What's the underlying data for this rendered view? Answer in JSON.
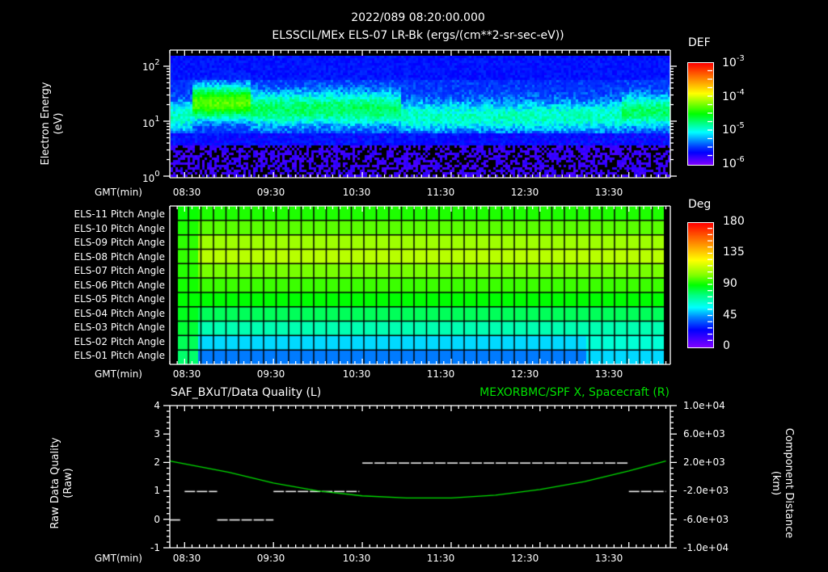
{
  "header": {
    "timestamp": "2022/089 08:20:00.000",
    "title": "ELSSCIL/MEx ELS-07 LR-Bk  (ergs/(cm**2-sr-sec-eV))"
  },
  "time_axis": {
    "label": "GMT(min)",
    "ticks": [
      "08:30",
      "09:30",
      "10:30",
      "11:30",
      "12:30",
      "13:30"
    ]
  },
  "panel1": {
    "ylabel": "Electron Energy",
    "yunit": "(eV)",
    "yticks": [
      {
        "base": "10",
        "exp": "2"
      },
      {
        "base": "10",
        "exp": "1"
      },
      {
        "base": "10",
        "exp": "0"
      }
    ],
    "colorbar": {
      "title": "DEF",
      "ticks": [
        {
          "base": "10",
          "exp": "-3"
        },
        {
          "base": "10",
          "exp": "-4"
        },
        {
          "base": "10",
          "exp": "-5"
        },
        {
          "base": "10",
          "exp": "-6"
        }
      ]
    }
  },
  "panel2": {
    "row_labels": [
      "ELS-11 Pitch Angle",
      "ELS-10 Pitch Angle",
      "ELS-09 Pitch Angle",
      "ELS-08 Pitch Angle",
      "ELS-07 Pitch Angle",
      "ELS-06 Pitch Angle",
      "ELS-05 Pitch Angle",
      "ELS-04 Pitch Angle",
      "ELS-03 Pitch Angle",
      "ELS-02 Pitch Angle",
      "ELS-01 Pitch Angle"
    ],
    "colorbar": {
      "title": "Deg",
      "ticks": [
        "180",
        "135",
        "90",
        "45",
        "0"
      ]
    }
  },
  "panel3": {
    "left_title": "SAF_BXuT/Data Quality (L)",
    "right_title": "MEXORBMC/SPF X, Spacecraft (R)",
    "ylabel_left": "Raw Data Quality",
    "ylabel_left_unit": "(Raw)",
    "ylabel_right": "Component Distance",
    "ylabel_right_unit": "(km)",
    "yticks_left": [
      "4",
      "3",
      "2",
      "1",
      "0",
      "-1"
    ],
    "yticks_right": [
      "1.0e+04",
      "6.0e+03",
      "2.0e+03",
      "-2.0e+03",
      "-6.0e+03",
      "-1.0e+04"
    ],
    "colors": {
      "quality": "#ffffff",
      "spf_x": "#00e000"
    }
  },
  "chart_data": [
    {
      "type": "heatmap",
      "title": "ELSSCIL/MEx ELS-07 LR-Bk (ergs/(cm**2-sr-sec-eV))",
      "xlabel": "GMT(min)",
      "ylabel": "Electron Energy (eV)",
      "x_ticks": [
        "08:30",
        "09:30",
        "10:30",
        "11:30",
        "12:30",
        "13:30"
      ],
      "y_scale": "log",
      "ylim": [
        1,
        150
      ],
      "colorbar": {
        "label": "DEF",
        "scale": "log",
        "range": [
          1e-06,
          0.001
        ]
      },
      "features": [
        {
          "time": "08:34-09:10",
          "energy_eV": "15-60",
          "level": 0.0002,
          "desc": "enhanced green/yellow band"
        },
        {
          "time": "09:10-10:35",
          "energy_eV": "10-40",
          "level": 6e-05
        },
        {
          "time": "10:35-13:50",
          "energy_eV": "8-30",
          "level": 3e-05
        },
        {
          "time": "08:20-13:55",
          "energy_eV": "1-4",
          "level": 1e-06,
          "desc": "noise floor / sparse"
        }
      ]
    },
    {
      "type": "heatmap",
      "title": "ELS Pitch Angle",
      "xlabel": "GMT(min)",
      "x_ticks": [
        "08:30",
        "09:30",
        "10:30",
        "11:30",
        "12:30",
        "13:30"
      ],
      "categories": [
        "ELS-11",
        "ELS-10",
        "ELS-09",
        "ELS-08",
        "ELS-07",
        "ELS-06",
        "ELS-05",
        "ELS-04",
        "ELS-03",
        "ELS-02",
        "ELS-01"
      ],
      "values_deg": [
        95,
        105,
        115,
        118,
        110,
        100,
        90,
        80,
        70,
        58,
        50
      ],
      "colorbar": {
        "label": "Deg",
        "range": [
          0,
          180
        ]
      }
    },
    {
      "type": "line",
      "title": "SAF_BXuT/Data Quality (L) ; MEXORBMC/SPF X, Spacecraft (R)",
      "xlabel": "GMT(min)",
      "ylabel": "Raw Data Quality (Raw)",
      "ylabel_right": "Component Distance (km)",
      "ylim": [
        -1,
        4
      ],
      "ylim_right": [
        -10000,
        10000
      ],
      "series": [
        {
          "name": "Data Quality",
          "axis": "left",
          "segments": [
            {
              "t": [
                "08:20",
                "08:27"
              ],
              "value": 0
            },
            {
              "t": [
                "08:30",
                "08:52"
              ],
              "value": 1
            },
            {
              "t": [
                "08:52",
                "09:30"
              ],
              "value": 0
            },
            {
              "t": [
                "09:30",
                "10:28"
              ],
              "value": 1
            },
            {
              "t": [
                "10:30",
                "13:30"
              ],
              "value": 2
            },
            {
              "t": [
                "13:30",
                "13:55"
              ],
              "value": 1
            }
          ]
        },
        {
          "name": "SPF X, Spacecraft",
          "axis": "right",
          "x": [
            "08:20",
            "09:00",
            "09:30",
            "10:00",
            "10:30",
            "11:00",
            "11:30",
            "12:00",
            "12:30",
            "13:00",
            "13:30",
            "13:55"
          ],
          "values": [
            2200,
            600,
            -900,
            -2000,
            -2700,
            -3000,
            -3000,
            -2600,
            -1800,
            -700,
            800,
            2200
          ]
        }
      ]
    }
  ]
}
